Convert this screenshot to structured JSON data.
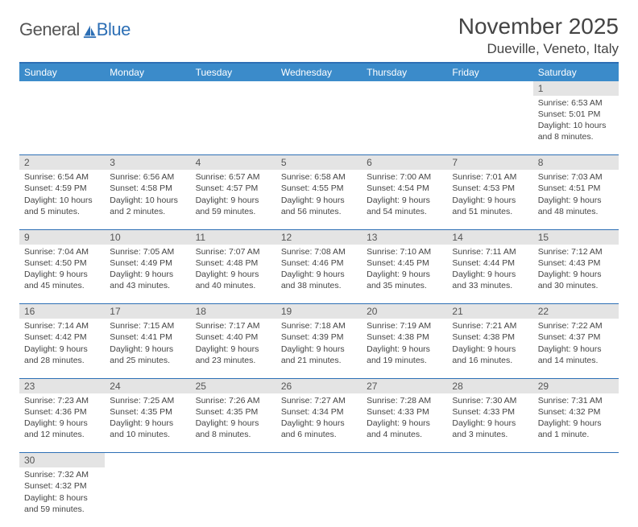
{
  "logo": {
    "word1": "General",
    "word2": "Blue"
  },
  "title": "November 2025",
  "location": "Dueville, Veneto, Italy",
  "colors": {
    "header_bg": "#3b8bca",
    "accent_border": "#2d6fb5",
    "daynum_bg": "#e4e4e4",
    "text": "#444444",
    "logo_gray": "#555555",
    "logo_blue": "#2d6fb5"
  },
  "day_headers": [
    "Sunday",
    "Monday",
    "Tuesday",
    "Wednesday",
    "Thursday",
    "Friday",
    "Saturday"
  ],
  "weeks": [
    [
      null,
      null,
      null,
      null,
      null,
      null,
      {
        "n": "1",
        "sunrise": "Sunrise: 6:53 AM",
        "sunset": "Sunset: 5:01 PM",
        "daylight": "Daylight: 10 hours and 8 minutes."
      }
    ],
    [
      {
        "n": "2",
        "sunrise": "Sunrise: 6:54 AM",
        "sunset": "Sunset: 4:59 PM",
        "daylight": "Daylight: 10 hours and 5 minutes."
      },
      {
        "n": "3",
        "sunrise": "Sunrise: 6:56 AM",
        "sunset": "Sunset: 4:58 PM",
        "daylight": "Daylight: 10 hours and 2 minutes."
      },
      {
        "n": "4",
        "sunrise": "Sunrise: 6:57 AM",
        "sunset": "Sunset: 4:57 PM",
        "daylight": "Daylight: 9 hours and 59 minutes."
      },
      {
        "n": "5",
        "sunrise": "Sunrise: 6:58 AM",
        "sunset": "Sunset: 4:55 PM",
        "daylight": "Daylight: 9 hours and 56 minutes."
      },
      {
        "n": "6",
        "sunrise": "Sunrise: 7:00 AM",
        "sunset": "Sunset: 4:54 PM",
        "daylight": "Daylight: 9 hours and 54 minutes."
      },
      {
        "n": "7",
        "sunrise": "Sunrise: 7:01 AM",
        "sunset": "Sunset: 4:53 PM",
        "daylight": "Daylight: 9 hours and 51 minutes."
      },
      {
        "n": "8",
        "sunrise": "Sunrise: 7:03 AM",
        "sunset": "Sunset: 4:51 PM",
        "daylight": "Daylight: 9 hours and 48 minutes."
      }
    ],
    [
      {
        "n": "9",
        "sunrise": "Sunrise: 7:04 AM",
        "sunset": "Sunset: 4:50 PM",
        "daylight": "Daylight: 9 hours and 45 minutes."
      },
      {
        "n": "10",
        "sunrise": "Sunrise: 7:05 AM",
        "sunset": "Sunset: 4:49 PM",
        "daylight": "Daylight: 9 hours and 43 minutes."
      },
      {
        "n": "11",
        "sunrise": "Sunrise: 7:07 AM",
        "sunset": "Sunset: 4:48 PM",
        "daylight": "Daylight: 9 hours and 40 minutes."
      },
      {
        "n": "12",
        "sunrise": "Sunrise: 7:08 AM",
        "sunset": "Sunset: 4:46 PM",
        "daylight": "Daylight: 9 hours and 38 minutes."
      },
      {
        "n": "13",
        "sunrise": "Sunrise: 7:10 AM",
        "sunset": "Sunset: 4:45 PM",
        "daylight": "Daylight: 9 hours and 35 minutes."
      },
      {
        "n": "14",
        "sunrise": "Sunrise: 7:11 AM",
        "sunset": "Sunset: 4:44 PM",
        "daylight": "Daylight: 9 hours and 33 minutes."
      },
      {
        "n": "15",
        "sunrise": "Sunrise: 7:12 AM",
        "sunset": "Sunset: 4:43 PM",
        "daylight": "Daylight: 9 hours and 30 minutes."
      }
    ],
    [
      {
        "n": "16",
        "sunrise": "Sunrise: 7:14 AM",
        "sunset": "Sunset: 4:42 PM",
        "daylight": "Daylight: 9 hours and 28 minutes."
      },
      {
        "n": "17",
        "sunrise": "Sunrise: 7:15 AM",
        "sunset": "Sunset: 4:41 PM",
        "daylight": "Daylight: 9 hours and 25 minutes."
      },
      {
        "n": "18",
        "sunrise": "Sunrise: 7:17 AM",
        "sunset": "Sunset: 4:40 PM",
        "daylight": "Daylight: 9 hours and 23 minutes."
      },
      {
        "n": "19",
        "sunrise": "Sunrise: 7:18 AM",
        "sunset": "Sunset: 4:39 PM",
        "daylight": "Daylight: 9 hours and 21 minutes."
      },
      {
        "n": "20",
        "sunrise": "Sunrise: 7:19 AM",
        "sunset": "Sunset: 4:38 PM",
        "daylight": "Daylight: 9 hours and 19 minutes."
      },
      {
        "n": "21",
        "sunrise": "Sunrise: 7:21 AM",
        "sunset": "Sunset: 4:38 PM",
        "daylight": "Daylight: 9 hours and 16 minutes."
      },
      {
        "n": "22",
        "sunrise": "Sunrise: 7:22 AM",
        "sunset": "Sunset: 4:37 PM",
        "daylight": "Daylight: 9 hours and 14 minutes."
      }
    ],
    [
      {
        "n": "23",
        "sunrise": "Sunrise: 7:23 AM",
        "sunset": "Sunset: 4:36 PM",
        "daylight": "Daylight: 9 hours and 12 minutes."
      },
      {
        "n": "24",
        "sunrise": "Sunrise: 7:25 AM",
        "sunset": "Sunset: 4:35 PM",
        "daylight": "Daylight: 9 hours and 10 minutes."
      },
      {
        "n": "25",
        "sunrise": "Sunrise: 7:26 AM",
        "sunset": "Sunset: 4:35 PM",
        "daylight": "Daylight: 9 hours and 8 minutes."
      },
      {
        "n": "26",
        "sunrise": "Sunrise: 7:27 AM",
        "sunset": "Sunset: 4:34 PM",
        "daylight": "Daylight: 9 hours and 6 minutes."
      },
      {
        "n": "27",
        "sunrise": "Sunrise: 7:28 AM",
        "sunset": "Sunset: 4:33 PM",
        "daylight": "Daylight: 9 hours and 4 minutes."
      },
      {
        "n": "28",
        "sunrise": "Sunrise: 7:30 AM",
        "sunset": "Sunset: 4:33 PM",
        "daylight": "Daylight: 9 hours and 3 minutes."
      },
      {
        "n": "29",
        "sunrise": "Sunrise: 7:31 AM",
        "sunset": "Sunset: 4:32 PM",
        "daylight": "Daylight: 9 hours and 1 minute."
      }
    ],
    [
      {
        "n": "30",
        "sunrise": "Sunrise: 7:32 AM",
        "sunset": "Sunset: 4:32 PM",
        "daylight": "Daylight: 8 hours and 59 minutes."
      },
      null,
      null,
      null,
      null,
      null,
      null
    ]
  ]
}
